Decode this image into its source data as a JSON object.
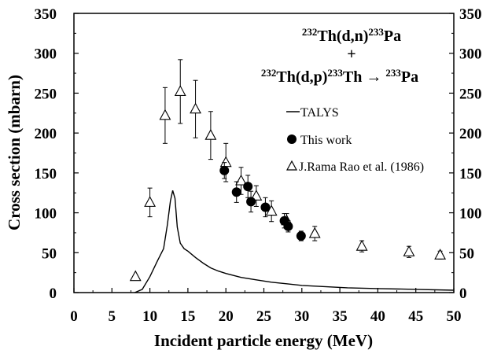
{
  "chart_data": {
    "type": "scatter",
    "xlabel": "Incident particle energy (MeV)",
    "ylabel": "Cross section (mbarn)",
    "xlim": [
      0,
      50
    ],
    "ylim": [
      0,
      350
    ],
    "x_ticks": [
      0,
      5,
      10,
      15,
      20,
      25,
      30,
      35,
      40,
      45,
      50
    ],
    "y_ticks": [
      0,
      50,
      100,
      150,
      200,
      250,
      300,
      350
    ],
    "y_axis_right_mirrored": true,
    "grid": false,
    "legend_position": "upper-right",
    "annotation": {
      "line1": {
        "m1": "232",
        "t1": "Th(d,n)",
        "m2": "233",
        "t2": "Pa"
      },
      "line2": "+",
      "line3": {
        "m1": "232",
        "t1": "Th(d,p)",
        "m2": "233",
        "t2": "Th → ",
        "m3": "233",
        "t3": "Pa"
      }
    },
    "series": [
      {
        "name": "TALYS",
        "kind": "line",
        "color": "#000000",
        "x": [
          8,
          9,
          10,
          11,
          11.8,
          12.3,
          12.7,
          13.0,
          13.3,
          13.6,
          14.0,
          14.5,
          15,
          16,
          17,
          18,
          19,
          20,
          22,
          24,
          26,
          28,
          30,
          33,
          36,
          40,
          45,
          50
        ],
        "y": [
          0,
          4,
          20,
          40,
          55,
          85,
          115,
          128,
          118,
          82,
          62,
          55,
          52,
          44,
          37,
          31,
          27,
          24,
          19,
          16,
          13,
          11,
          9,
          7.5,
          6,
          5,
          4,
          3
        ]
      },
      {
        "name": "This work",
        "kind": "scatter",
        "marker": "filled-circle",
        "color": "#000000",
        "x": [
          19.8,
          21.4,
          22.9,
          23.3,
          25.2,
          27.7,
          28.2,
          29.9
        ],
        "y": [
          153,
          126,
          133,
          114,
          107,
          90,
          83,
          71
        ],
        "err": [
          10,
          13,
          14,
          13,
          12,
          9,
          7,
          6
        ]
      },
      {
        "name": "J.Rama Rao et al. (1986)",
        "kind": "scatter",
        "marker": "open-triangle",
        "color": "#000000",
        "x": [
          8.1,
          10.0,
          12.0,
          14.0,
          16.0,
          18.0,
          20.0,
          22.0,
          24.0,
          26.0,
          28.0,
          31.7,
          37.9,
          44.1,
          48.2
        ],
        "y": [
          20,
          113,
          222,
          252,
          230,
          197,
          163,
          140,
          121,
          102,
          90,
          74,
          58,
          51,
          47
        ],
        "err": [
          0,
          18,
          35,
          40,
          36,
          30,
          24,
          17,
          13,
          13,
          9,
          9,
          7,
          7,
          5
        ]
      }
    ]
  }
}
